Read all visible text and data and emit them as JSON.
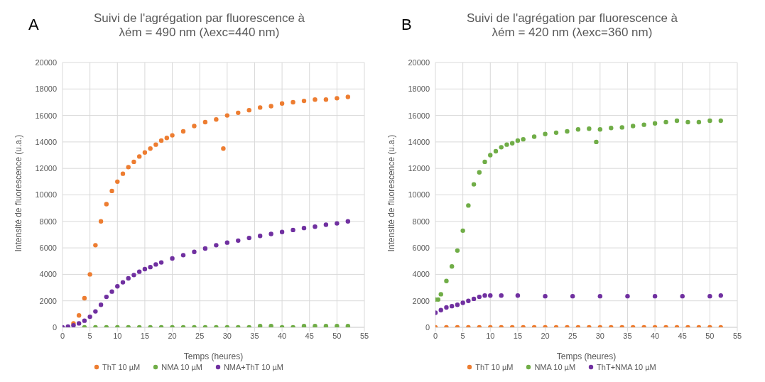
{
  "chart_data": [
    {
      "type": "scatter",
      "title": "Suivi de l'agrégation par fluorescence à\nλém = 490 nm (λexc=440 nm)",
      "annotations": [
        "A"
      ],
      "xlabel": "Temps (heures)",
      "ylabel": "Intensité de fluorescence (u.a.)",
      "xlim": [
        0,
        55
      ],
      "xticks": [
        0,
        5,
        10,
        15,
        20,
        25,
        30,
        35,
        40,
        45,
        50,
        55
      ],
      "ylim": [
        0,
        20000
      ],
      "yticks": [
        0,
        2000,
        4000,
        6000,
        8000,
        10000,
        12000,
        14000,
        16000,
        18000,
        20000
      ],
      "grid": true,
      "legend": "bottom",
      "marker": "circle",
      "series": [
        {
          "name": "ThT 10 µM",
          "color": "#ed7d31",
          "x": [
            2,
            3,
            4,
            5,
            6,
            7,
            8,
            9,
            10,
            11,
            12,
            13,
            14,
            15,
            16,
            17,
            18,
            19,
            20,
            22,
            24,
            26,
            28,
            29.3,
            30,
            32,
            34,
            36,
            38,
            40,
            42,
            44,
            46,
            48,
            50,
            52
          ],
          "values": [
            300,
            900,
            2200,
            4000,
            6200,
            8000,
            9300,
            10300,
            11000,
            11600,
            12100,
            12500,
            12900,
            13200,
            13500,
            13800,
            14100,
            14300,
            14500,
            14800,
            15200,
            15500,
            15700,
            13500,
            16000,
            16200,
            16400,
            16600,
            16700,
            16900,
            17000,
            17100,
            17200,
            17200,
            17300,
            17400
          ]
        },
        {
          "name": "NMA 10 µM",
          "color": "#70ad47",
          "x": [
            4,
            6,
            8,
            10,
            12,
            14,
            16,
            18,
            20,
            22,
            24,
            26,
            28,
            30,
            32,
            34,
            36,
            38,
            40,
            42,
            44,
            46,
            48,
            50,
            52
          ],
          "values": [
            0,
            0,
            0,
            0,
            0,
            0,
            0,
            0,
            0,
            0,
            0,
            0,
            0,
            0,
            0,
            0,
            100,
            100,
            0,
            0,
            100,
            100,
            100,
            100,
            100
          ]
        },
        {
          "name": "NMA+ThT 10 µM",
          "color": "#7030a0",
          "x": [
            0,
            1,
            2,
            3,
            4,
            5,
            6,
            7,
            8,
            9,
            10,
            11,
            12,
            13,
            14,
            15,
            16,
            17,
            18,
            20,
            22,
            24,
            26,
            28,
            30,
            32,
            34,
            36,
            38,
            40,
            42,
            44,
            46,
            48,
            50,
            52
          ],
          "values": [
            0,
            50,
            150,
            300,
            500,
            800,
            1200,
            1700,
            2300,
            2700,
            3100,
            3400,
            3700,
            3950,
            4200,
            4400,
            4550,
            4750,
            4900,
            5200,
            5450,
            5700,
            5950,
            6200,
            6400,
            6550,
            6750,
            6900,
            7050,
            7200,
            7350,
            7500,
            7600,
            7750,
            7850,
            8000
          ]
        }
      ]
    },
    {
      "type": "scatter",
      "title": "Suivi de l'agrégation par fluorescence à\nλém = 420 nm (λexc=360 nm)",
      "annotations": [
        "B"
      ],
      "xlabel": "Temps (heures)",
      "ylabel": "Intensité de fluorescence (u.a.)",
      "xlim": [
        0,
        55
      ],
      "xticks": [
        0,
        5,
        10,
        15,
        20,
        25,
        30,
        35,
        40,
        45,
        50,
        55
      ],
      "ylim": [
        0,
        20000
      ],
      "yticks": [
        0,
        2000,
        4000,
        6000,
        8000,
        10000,
        12000,
        14000,
        16000,
        18000,
        20000
      ],
      "grid": true,
      "legend": "bottom",
      "marker": "circle",
      "series": [
        {
          "name": "ThT 10 µM",
          "color": "#ed7d31",
          "x": [
            0,
            2,
            4,
            6,
            8,
            10,
            12,
            14,
            16,
            18,
            20,
            22,
            24,
            26,
            28,
            30,
            32,
            34,
            36,
            38,
            40,
            42,
            44,
            46,
            48,
            50,
            52
          ],
          "values": [
            0,
            0,
            0,
            0,
            0,
            0,
            0,
            0,
            0,
            0,
            0,
            0,
            0,
            0,
            0,
            0,
            0,
            0,
            0,
            0,
            0,
            0,
            0,
            0,
            0,
            0,
            0
          ]
        },
        {
          "name": "NMA 10 µM",
          "color": "#70ad47",
          "x": [
            0,
            0.5,
            1,
            2,
            3,
            4,
            5,
            6,
            7,
            8,
            9,
            10,
            11,
            12,
            13,
            14,
            15,
            16,
            18,
            20,
            22,
            24,
            26,
            28,
            29.3,
            30,
            32,
            34,
            36,
            38,
            40,
            42,
            44,
            46,
            48,
            50,
            52
          ],
          "values": [
            2100,
            2100,
            2500,
            3500,
            4600,
            5800,
            7300,
            9200,
            10800,
            11700,
            12500,
            13000,
            13300,
            13600,
            13800,
            13900,
            14100,
            14200,
            14400,
            14600,
            14700,
            14800,
            14950,
            15000,
            14000,
            14950,
            15050,
            15100,
            15200,
            15300,
            15400,
            15500,
            15600,
            15500,
            15500,
            15600,
            15600
          ]
        },
        {
          "name": "ThT+NMA 10 µM",
          "color": "#7030a0",
          "x": [
            0,
            1,
            2,
            3,
            4,
            5,
            6,
            7,
            8,
            9,
            10,
            12,
            15,
            20,
            25,
            30,
            35,
            40,
            45,
            50,
            52
          ],
          "values": [
            1100,
            1300,
            1500,
            1600,
            1700,
            1850,
            2000,
            2150,
            2300,
            2400,
            2400,
            2400,
            2400,
            2350,
            2350,
            2350,
            2350,
            2350,
            2350,
            2350,
            2400
          ]
        }
      ]
    }
  ]
}
